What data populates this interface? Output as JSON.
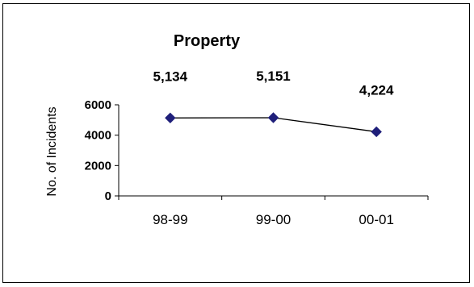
{
  "chart_data": {
    "type": "line",
    "title": "Property",
    "xlabel": "",
    "ylabel": "No. of Incidents",
    "categories": [
      "98-99",
      "99-00",
      "00-01"
    ],
    "values": [
      5134,
      5151,
      4224
    ],
    "data_labels": [
      "5,134",
      "5,151",
      "4,224"
    ],
    "yticks": [
      "0",
      "2000",
      "4000",
      "6000"
    ],
    "ylim": [
      0,
      6000
    ],
    "grid": false,
    "legend": "none",
    "marker": "diamond",
    "colors": {
      "marker": "#1F1F7A",
      "line": "#000000"
    }
  }
}
